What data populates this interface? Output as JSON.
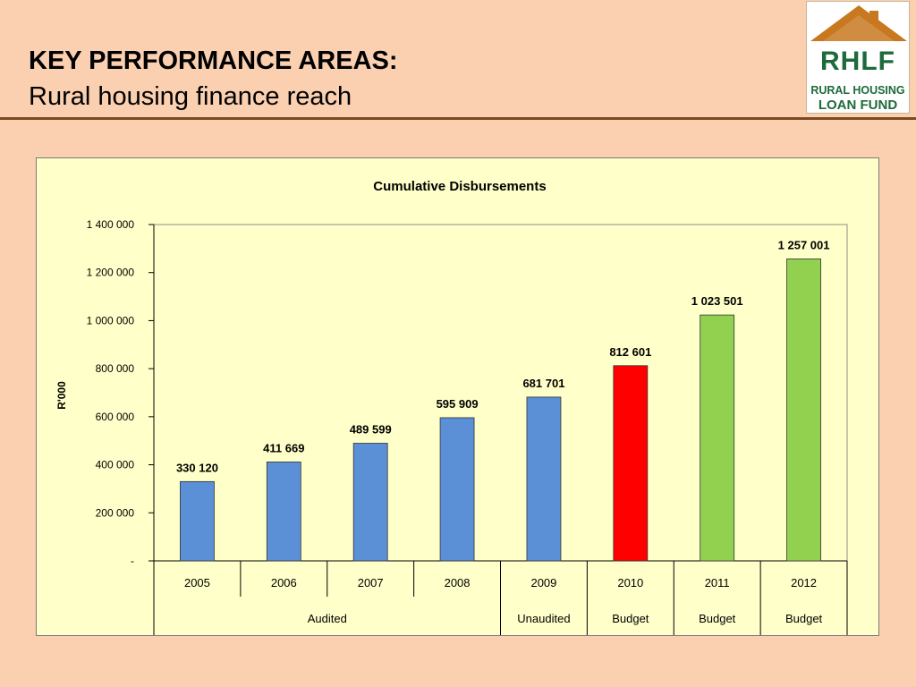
{
  "slide": {
    "title": "KEY PERFORMANCE AREAS:",
    "subtitle": "Rural housing finance reach"
  },
  "logo": {
    "abbr": "RHLF",
    "line1": "RURAL HOUSING",
    "line2": "LOAN FUND",
    "colors": {
      "roof": "#c8781e",
      "text": "#1c6b3a"
    }
  },
  "chart_data": {
    "type": "bar",
    "title": "Cumulative Disbursements",
    "xlabel": "",
    "ylabel": "R'000",
    "ylim": [
      0,
      1400000
    ],
    "yticks": [
      0,
      200000,
      400000,
      600000,
      800000,
      1000000,
      1200000,
      1400000
    ],
    "ytick_labels": [
      "-",
      "200 000",
      "400 000",
      "600 000",
      "800 000",
      "1 000 000",
      "1 200 000",
      "1 400 000"
    ],
    "categories": [
      "2005",
      "2006",
      "2007",
      "2008",
      "2009",
      "2010",
      "2011",
      "2012"
    ],
    "values": [
      330120,
      411669,
      489599,
      595909,
      681701,
      812601,
      1023501,
      1257001
    ],
    "data_labels": [
      "330 120",
      "411 669",
      "489 599",
      "595 909",
      "681 701",
      "812 601",
      "1 023 501",
      "1 257 001"
    ],
    "bar_colors": [
      "#5b8fd6",
      "#5b8fd6",
      "#5b8fd6",
      "#5b8fd6",
      "#5b8fd6",
      "#ff0000",
      "#92d050",
      "#92d050"
    ],
    "groups": [
      {
        "label": "Audited",
        "span": 4
      },
      {
        "label": "Unaudited",
        "span": 1
      },
      {
        "label": "Budget",
        "span": 1
      },
      {
        "label": "Budget",
        "span": 1
      },
      {
        "label": "Budget",
        "span": 1
      }
    ],
    "grid": false,
    "legend": "none"
  }
}
